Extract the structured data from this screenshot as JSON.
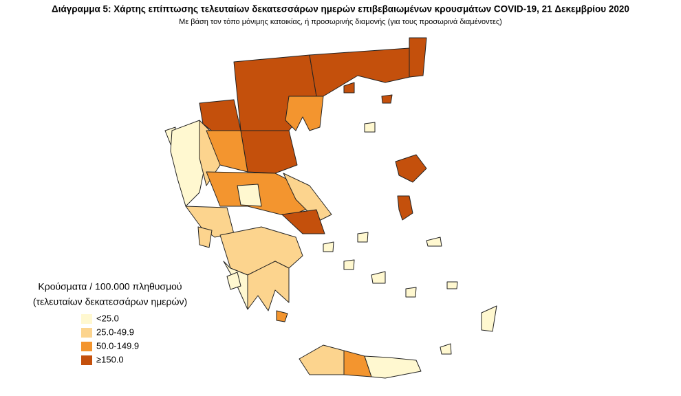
{
  "header": {
    "title": "Διάγραμμα 5: Χάρτης επίπτωσης τελευταίων δεκατεσσάρων ημερών επιβεβαιωμένων κρουσμάτων COVID-19, 21 Δεκεμβρίου 2020",
    "subtitle": "Με βάση τον τόπο μόνιμης κατοικίας, ή προσωρινής διαμονής (για τους προσωρινά διαμένοντες)"
  },
  "legend": {
    "title": [
      "Κρούσματα / 100.000 πληθυσμού",
      "(τελευταίων δεκατεσσάρων ημερών)"
    ],
    "items": [
      {
        "label": "<25.0",
        "color": "#fff8d0"
      },
      {
        "label": "25.0-49.9",
        "color": "#fcd48e"
      },
      {
        "label": "50.0-149.9",
        "color": "#f3952f"
      },
      {
        "label": "≥150.0",
        "color": "#c4500c"
      }
    ]
  }
}
